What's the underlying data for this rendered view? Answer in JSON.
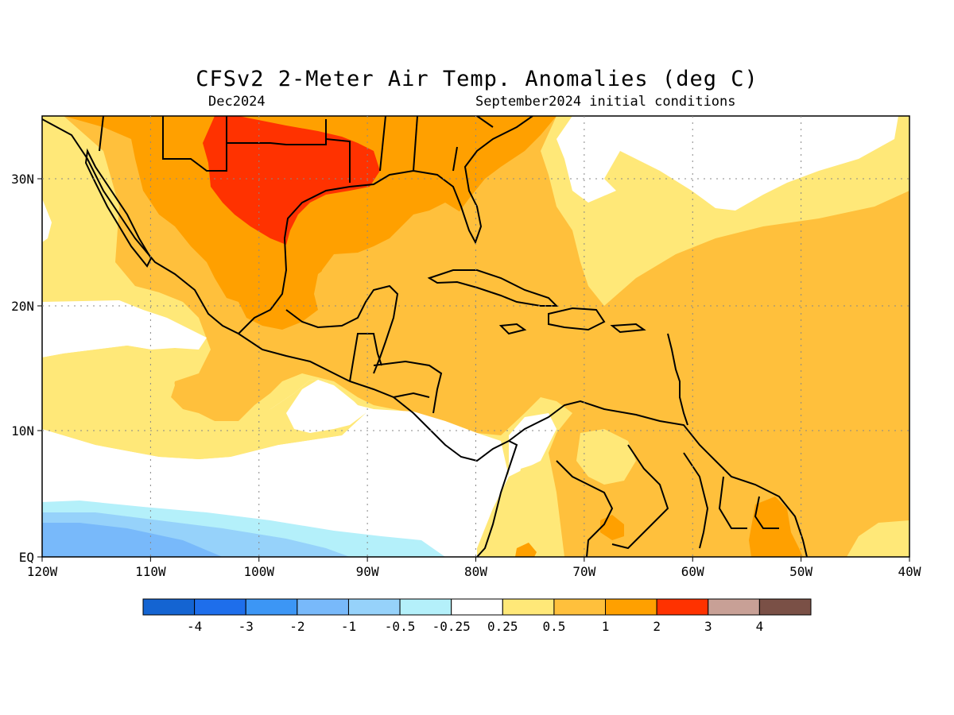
{
  "title": "CFSv2 2-Meter Air Temp. Anomalies (deg C)",
  "valid_month": "Dec2024",
  "init_conditions": "September2024 initial conditions",
  "lat_labels": [
    "30N",
    "20N",
    "10N",
    "EQ"
  ],
  "lon_labels": [
    "120W",
    "110W",
    "100W",
    "90W",
    "80W",
    "70W",
    "60W",
    "50W",
    "40W"
  ],
  "colorbar": {
    "colors": [
      "#1464d2",
      "#1e6eeb",
      "#3c96f5",
      "#78b9fa",
      "#96d2fa",
      "#b4f0fa",
      "#ffffff",
      "#ffe878",
      "#ffc03c",
      "#ffa000",
      "#ff3200",
      "#c8a096",
      "#7a5046"
    ],
    "labels": [
      "-4",
      "-3",
      "-2",
      "-1",
      "-0.5",
      "-0.25",
      "0.25",
      "0.5",
      "1",
      "2",
      "3",
      "4"
    ]
  }
}
